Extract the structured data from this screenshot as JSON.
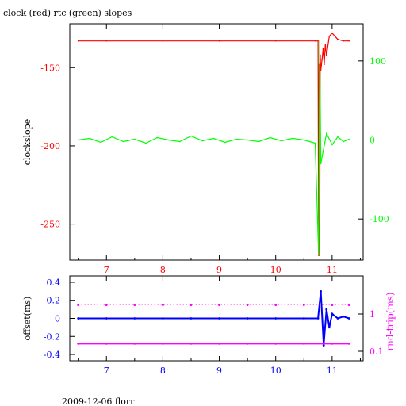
{
  "title": "clock (red) rtc (green) slopes",
  "footer": "2009-12-06 florr",
  "colors": {
    "clock": "#ff0000",
    "rtc": "#00ff00",
    "offset": "#0000ff",
    "rndtrip": "#ff00ff",
    "axis": "#000000"
  },
  "chart_data": [
    {
      "type": "line",
      "title": "clock (red) rtc (green) slopes",
      "xlabel": "",
      "ylabel": "clockslope",
      "y2label": "",
      "xlim": [
        6.35,
        11.55
      ],
      "ylim": [
        -273,
        -122
      ],
      "y2lim": [
        -152,
        147
      ],
      "xticks": [
        7,
        8,
        9,
        10,
        11
      ],
      "yticks": [
        -150,
        -200,
        -250
      ],
      "y2ticks": [
        100,
        0,
        -100
      ],
      "x_tick_color": "#ff0000",
      "y_tick_color": "#ff0000",
      "y2_tick_color": "#00ff00",
      "grid": false,
      "series": [
        {
          "name": "clock",
          "axis": "left",
          "color": "#ff0000",
          "x": [
            6.5,
            7.0,
            8.0,
            9.0,
            10.0,
            10.7,
            10.75,
            10.76,
            10.77,
            10.78,
            10.79,
            10.8,
            10.82,
            10.84,
            10.86,
            10.88,
            10.9,
            10.95,
            11.0,
            11.1,
            11.2,
            11.3
          ],
          "y": [
            -133,
            -133,
            -133,
            -133,
            -133,
            -133,
            -133,
            -270,
            -148,
            -270,
            -142,
            -152,
            -145,
            -138,
            -148,
            -135,
            -142,
            -130,
            -128,
            -132,
            -133,
            -133
          ]
        },
        {
          "name": "rtc",
          "axis": "right",
          "color": "#00ff00",
          "x": [
            6.5,
            6.7,
            6.9,
            7.1,
            7.3,
            7.5,
            7.7,
            7.9,
            8.1,
            8.3,
            8.5,
            8.7,
            8.9,
            9.1,
            9.3,
            9.5,
            9.7,
            9.9,
            10.1,
            10.3,
            10.5,
            10.7,
            10.76,
            10.78,
            10.8,
            10.9,
            11.0,
            11.1,
            11.2,
            11.3
          ],
          "y": [
            0,
            2,
            -3,
            4,
            -2,
            1,
            -4,
            3,
            0,
            -2,
            5,
            -1,
            2,
            -3,
            1,
            0,
            -2,
            3,
            -1,
            2,
            0,
            -4,
            -145,
            125,
            -30,
            8,
            -6,
            4,
            -2,
            1
          ]
        }
      ]
    },
    {
      "type": "scatter",
      "title": "",
      "xlabel": "",
      "ylabel": "offset(ms)",
      "y2label": "rnd-trip(ms)",
      "xlim": [
        6.35,
        11.55
      ],
      "ylim": [
        -0.47,
        0.47
      ],
      "y2scale": "log",
      "y2lim": [
        0.1,
        1
      ],
      "xticks": [
        7,
        8,
        9,
        10,
        11
      ],
      "yticks": [
        0.4,
        0.2,
        0,
        -0.2,
        -0.4
      ],
      "y2ticks": [
        1,
        0.1
      ],
      "x_tick_color": "#0000ff",
      "y_tick_color": "#0000ff",
      "y2_tick_color": "#ff00ff",
      "grid": false,
      "series": [
        {
          "name": "offset",
          "axis": "left",
          "color": "#0000ff",
          "x": [
            6.5,
            7.0,
            7.5,
            8.0,
            8.5,
            9.0,
            9.5,
            10.0,
            10.5,
            10.75,
            10.8,
            10.85,
            10.9,
            10.95,
            11.0,
            11.1,
            11.2,
            11.3
          ],
          "y": [
            0,
            0,
            0,
            0,
            0,
            0,
            0,
            0,
            0,
            0,
            0.3,
            -0.3,
            0.1,
            -0.1,
            0.05,
            0.0,
            0.02,
            0.0
          ]
        },
        {
          "name": "rndtrip",
          "axis": "right",
          "color": "#ff00ff",
          "x": [
            6.5,
            7.0,
            7.5,
            8.0,
            8.5,
            9.0,
            9.5,
            10.0,
            10.5,
            11.0,
            11.3
          ],
          "y": [
            0.16,
            0.16,
            0.16,
            0.16,
            0.16,
            0.16,
            0.16,
            0.16,
            0.16,
            0.16,
            0.16
          ]
        },
        {
          "name": "rndtrip-upper",
          "axis": "right",
          "color": "#ff00ff",
          "x": [
            6.5,
            7.0,
            7.5,
            8.0,
            8.5,
            9.0,
            9.5,
            10.0,
            10.5,
            11.0,
            11.3
          ],
          "y": [
            1.75,
            1.75,
            1.75,
            1.75,
            1.75,
            1.75,
            1.75,
            1.75,
            1.75,
            1.75,
            1.75
          ]
        }
      ]
    }
  ]
}
